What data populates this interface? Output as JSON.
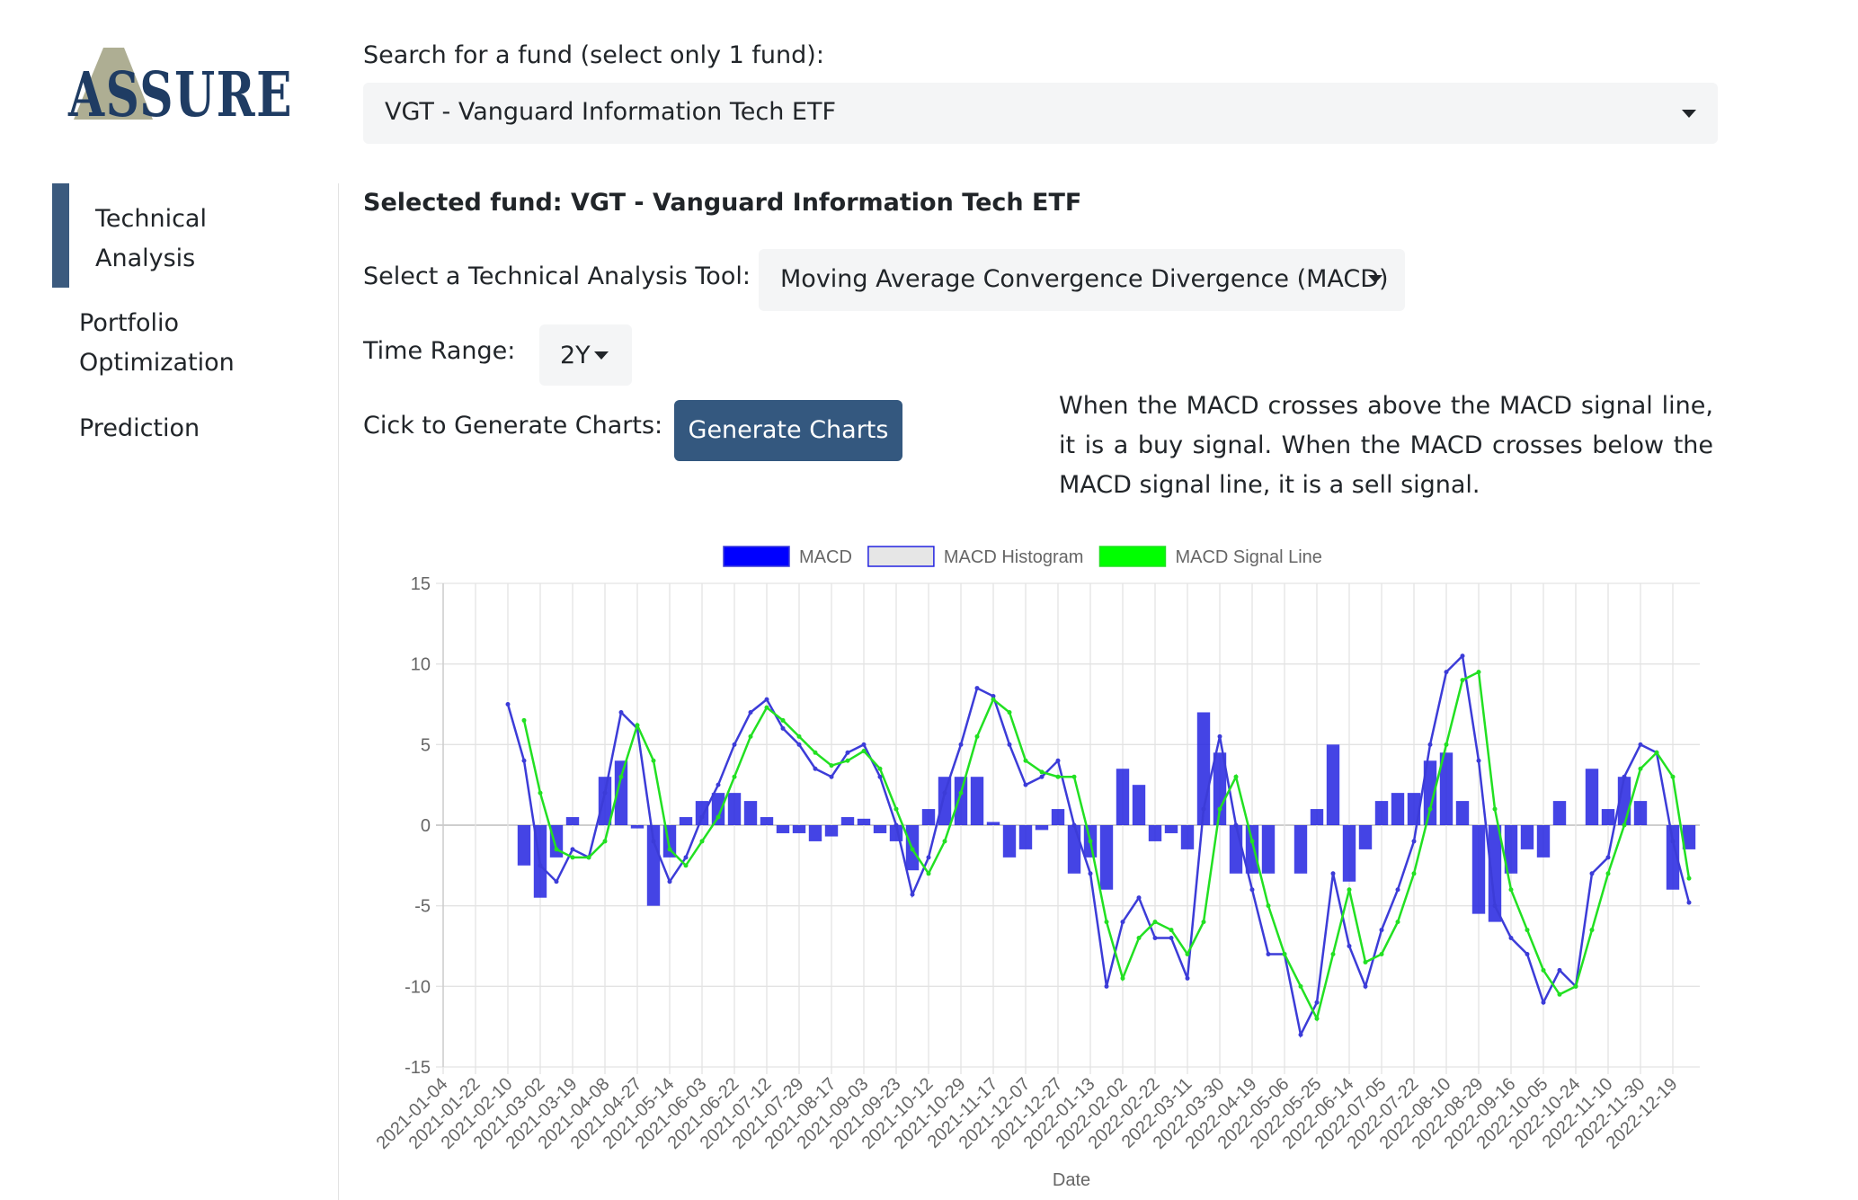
{
  "logo": {
    "text": "ASSURE"
  },
  "sidebar": {
    "items": [
      "Technical Analysis",
      "Portfolio Optimization",
      "Prediction"
    ]
  },
  "search": {
    "label": "Search for a fund (select only 1 fund):",
    "selected": "VGT - Vanguard Information Tech ETF"
  },
  "selected_fund": "Selected fund: VGT - Vanguard Information Tech ETF",
  "tool": {
    "label": "Select a Technical Analysis Tool:",
    "selected": "Moving Average Convergence Divergence (MACD)"
  },
  "time_range": {
    "label": "Time Range:",
    "selected": "2Y"
  },
  "generate": {
    "label": "Cick to Generate Charts:",
    "button": "Generate Charts"
  },
  "description": "When the MACD crosses above the MACD signal line, it is a buy signal. When the MACD crosses below the MACD signal line, it is a sell signal.",
  "chart_data": {
    "type": "line",
    "x_label": "Date",
    "categories": [
      "2021-01-04",
      null,
      "2021-01-22",
      null,
      "2021-02-10",
      null,
      "2021-03-02",
      null,
      "2021-03-19",
      null,
      "2021-04-08",
      null,
      "2021-04-27",
      null,
      "2021-05-14",
      null,
      "2021-06-03",
      null,
      "2021-06-22",
      null,
      "2021-07-12",
      null,
      "2021-07-29",
      null,
      "2021-08-17",
      null,
      "2021-09-03",
      null,
      "2021-09-23",
      null,
      "2021-10-12",
      null,
      "2021-10-29",
      null,
      "2021-11-17",
      null,
      "2021-12-07",
      null,
      "2021-12-27",
      null,
      "2022-01-13",
      null,
      "2022-02-02",
      null,
      "2022-02-22",
      null,
      "2022-03-11",
      null,
      "2022-03-30",
      null,
      "2022-04-19",
      null,
      "2022-05-06",
      null,
      "2022-05-25",
      null,
      "2022-06-14",
      null,
      "2022-07-05",
      null,
      "2022-07-22",
      null,
      "2022-08-10",
      null,
      "2022-08-29",
      null,
      "2022-09-16",
      null,
      "2022-10-05",
      null,
      "2022-10-24",
      null,
      "2022-11-10",
      null,
      "2022-11-30",
      null,
      "2022-12-19",
      null
    ],
    "series": [
      {
        "name": "MACD",
        "type": "line",
        "color": "#3c3cd8",
        "legend_fill": "#0000ff",
        "values": [
          null,
          null,
          null,
          null,
          7.5,
          4,
          -2.5,
          -3.5,
          -1.5,
          -2,
          2,
          7,
          6,
          -1,
          -3.5,
          -2,
          0.5,
          2.5,
          5,
          7,
          7.8,
          6,
          5,
          3.5,
          3,
          4.5,
          5,
          3,
          0,
          -4.3,
          -2,
          2,
          5,
          8.5,
          8,
          5,
          2.5,
          3,
          4,
          0,
          -3,
          -10,
          -6,
          -4.5,
          -7,
          -7,
          -9.5,
          1,
          5.5,
          0,
          -4,
          -8,
          -8,
          -13,
          -11,
          -3,
          -7.5,
          -10,
          -6.5,
          -4,
          -1,
          5,
          9.5,
          10.5,
          4,
          -5,
          -7,
          -8,
          -11,
          -9,
          -10,
          -3,
          -2,
          3,
          5,
          4.5,
          -1,
          -4.8
        ]
      },
      {
        "name": "MACD Histogram",
        "type": "bar",
        "color": "#2323e0",
        "legend_fill": "#e6e6e6",
        "values": [
          null,
          null,
          null,
          null,
          null,
          -2.5,
          -4.5,
          -2,
          0.5,
          0,
          3,
          4,
          -0.2,
          -5,
          -2,
          0.5,
          1.5,
          2,
          2,
          1.5,
          0.5,
          -0.5,
          -0.5,
          -1,
          -0.7,
          0.5,
          0.4,
          -0.5,
          -1,
          -2.8,
          1,
          3,
          3,
          3,
          0.2,
          -2,
          -1.5,
          -0.3,
          1,
          -3,
          -2,
          -4,
          3.5,
          2.5,
          -1,
          -0.5,
          -1.5,
          7,
          4.5,
          -3,
          -3,
          -3,
          0,
          -3,
          1,
          5,
          -3.5,
          -1.5,
          1.5,
          2,
          2,
          4,
          4.5,
          1.5,
          -5.5,
          -6,
          -3,
          -1.5,
          -2,
          1.5,
          0,
          3.5,
          1,
          3,
          1.5,
          0,
          -4,
          -1.5
        ]
      },
      {
        "name": "MACD Signal Line",
        "type": "line",
        "color": "#22e022",
        "legend_fill": "#00ff00",
        "values": [
          null,
          null,
          null,
          null,
          null,
          6.5,
          2,
          -1.5,
          -2,
          -2,
          -1,
          3,
          6.2,
          4,
          -1.5,
          -2.5,
          -1,
          0.5,
          3,
          5.5,
          7.3,
          6.5,
          5.5,
          4.5,
          3.7,
          4,
          4.6,
          3.5,
          1,
          -1.5,
          -3,
          -1,
          2,
          5.5,
          7.8,
          7,
          4,
          3.3,
          3,
          3,
          -1,
          -6,
          -9.5,
          -7,
          -6,
          -6.5,
          -8,
          -6,
          1,
          3,
          -1,
          -5,
          -8,
          -10,
          -12,
          -8,
          -4,
          -8.5,
          -8,
          -6,
          -3,
          1,
          5,
          9,
          9.5,
          1,
          -4,
          -6.5,
          -9,
          -10.5,
          -10,
          -6.5,
          -3,
          0,
          3.5,
          4.5,
          3,
          -3.3
        ]
      }
    ],
    "ylim": [
      -15,
      15
    ],
    "yticks": [
      -15,
      -10,
      -5,
      0,
      5,
      10,
      15
    ],
    "grid": true,
    "legend": "top"
  }
}
